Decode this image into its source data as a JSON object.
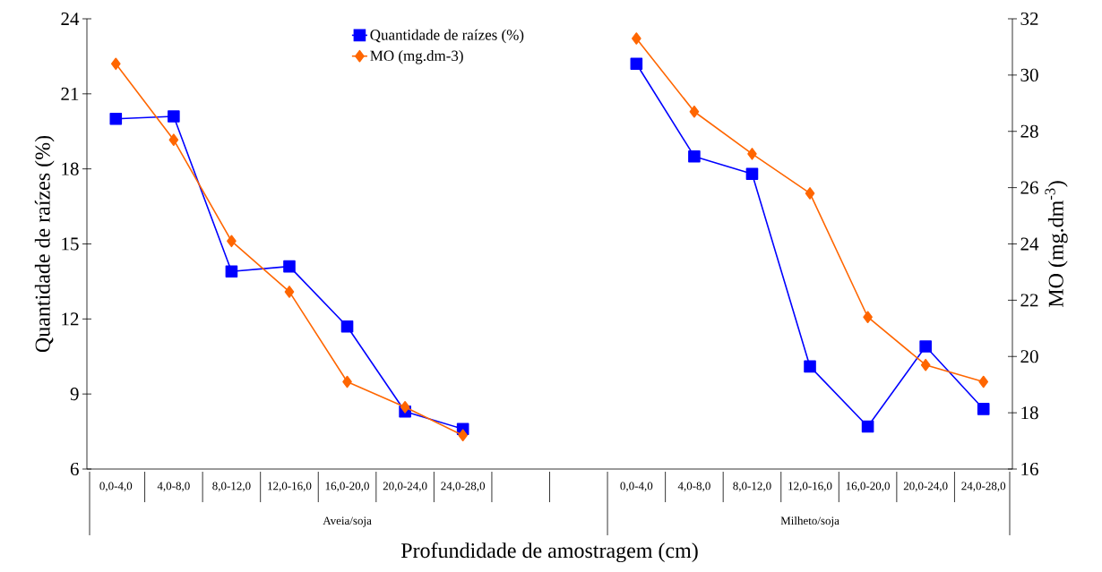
{
  "chart_data": {
    "type": "line",
    "xlabel": "Profundidade de amostragem (cm)",
    "ylabel": "Quantidade de raízes (%)",
    "y2label": "MO (mg.dm$^{-3}$)",
    "categories": [
      "0,0-4,0",
      "4,0-8,0",
      "8,0-12,0",
      "12,0-16,0",
      "16,0-20,0",
      "20,0-24,0",
      "24,0-28,0",
      null,
      null,
      "0,0-4,0",
      "4,0-8,0",
      "8,0-12,0",
      "12,0-16,0",
      "16,0-20,0",
      "20,0-24,0",
      "24,0-28,0"
    ],
    "annotations": [
      "Aveia/soja",
      "Milheto/soja"
    ],
    "series": [
      {
        "name": "Quantidade de raízes (%)",
        "color": "#0000ff",
        "marker": "square",
        "values": [
          20.0,
          20.1,
          13.9,
          14.1,
          11.7,
          8.3,
          7.6,
          null,
          null,
          22.2,
          18.5,
          17.8,
          10.1,
          7.7,
          10.9,
          8.4
        ]
      },
      {
        "name": "MO (mg.dm-3)",
        "color": "#ff6600",
        "marker": "diamond",
        "axis": "y2",
        "values": [
          30.4,
          27.7,
          24.1,
          22.3,
          19.1,
          18.2,
          17.2,
          null,
          null,
          31.3,
          28.7,
          27.2,
          25.8,
          21.4,
          19.7,
          19.1
        ]
      }
    ],
    "ylim": [
      6,
      24
    ],
    "yticks": [
      6,
      9,
      12,
      15,
      18,
      21,
      24
    ],
    "y2lim": [
      16,
      32
    ],
    "y2ticks": [
      16,
      18,
      20,
      22,
      24,
      26,
      28,
      30,
      32
    ],
    "legend": "top",
    "grid": false,
    "line_style": "solid"
  }
}
